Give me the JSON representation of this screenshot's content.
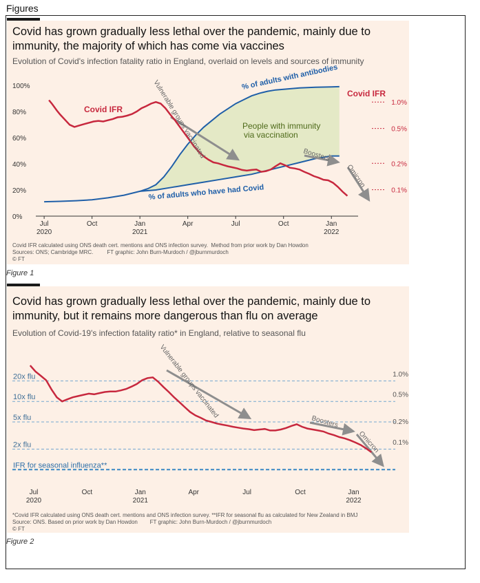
{
  "document": {
    "heading": "Figures"
  },
  "colors": {
    "panel_bg": "#fdf0e6",
    "ifr_line": "#c7283e",
    "antibody_line": "#1f5fa8",
    "fill_area": "#e4e9c6",
    "arrow": "#8e8e8e",
    "flu_line": "#3a88c4",
    "dashed": "#73a7d0"
  },
  "figure1": {
    "caption": "Figure 1",
    "title_line1": "Covid has grown gradually less lethal over the pandemic, mainly due to",
    "title_line2": "immunity, the majority of which has come via vaccines",
    "subtitle": "Evolution of Covid's infection fatality ratio in England, overlaid on levels and sources of immunity",
    "note_line1": "Covid IFR calculated using ONS death cert. mentions and ONS infection survey.  Method from prior work by Dan Howdon",
    "note_line2": "Sources: ONS; Cambridge MRC.         FT graphic: John Burn-Murdoch / @jburnmurdoch",
    "note_line3": "© FT"
  },
  "figure2": {
    "caption": "Figure 2",
    "title_line1": "Covid has grown gradually less lethal over the pandemic, mainly due to",
    "title_line2": "immunity, but it remains more dangerous than flu on average",
    "subtitle": "Evolution of Covid-19's infection fatality ratio* in England, relative to seasonal flu",
    "note_line1": "*Covid IFR calculated using ONS death cert. mentions and ONS infection survey. **IFR for seasonal flu as calculated for New Zealand in BMJ",
    "note_line2": "Source: ONS. Based on prior work by Dan Howdon        FT graphic: John Burn-Murdoch / @jburnmurdoch",
    "note_line3": "© FT"
  },
  "chart_data": [
    {
      "type": "line",
      "title": "Covid has grown gradually less lethal over the pandemic, mainly due to immunity, the majority of which has come via vaccines",
      "x_ticks": [
        {
          "t": 0,
          "label": "Jul",
          "year": "2020"
        },
        {
          "t": 3,
          "label": "Oct",
          "year": ""
        },
        {
          "t": 6,
          "label": "Jan",
          "year": "2021"
        },
        {
          "t": 9,
          "label": "Apr",
          "year": ""
        },
        {
          "t": 12,
          "label": "Jul",
          "year": ""
        },
        {
          "t": 15,
          "label": "Oct",
          "year": ""
        },
        {
          "t": 18,
          "label": "Jan",
          "year": "2022"
        }
      ],
      "xlim": [
        -0.35,
        19.5
      ],
      "ylim_left": [
        0,
        100
      ],
      "left_ticks": [
        {
          "v": 0,
          "label": "0%"
        },
        {
          "v": 20,
          "label": "20%"
        },
        {
          "v": 40,
          "label": "40%"
        },
        {
          "v": 60,
          "label": "60%"
        },
        {
          "v": 80,
          "label": "80%"
        },
        {
          "v": 100,
          "label": "100%"
        }
      ],
      "right_axis_title": "Covid IFR",
      "right_scale": "log",
      "ylim_right_ifr_pct": [
        0.05,
        1.55
      ],
      "right_ticks": [
        {
          "v": 1.0,
          "label": "1.0%"
        },
        {
          "v": 0.5,
          "label": "0.5%"
        },
        {
          "v": 0.2,
          "label": "0.2%"
        },
        {
          "v": 0.1,
          "label": "0.1%"
        }
      ],
      "series": [
        {
          "name": "Covid IFR",
          "axis": "right",
          "x": [
            0.3,
            0.5,
            0.8,
            1.0,
            1.3,
            1.6,
            1.9,
            2.2,
            2.5,
            2.8,
            3.1,
            3.4,
            3.7,
            4.0,
            4.3,
            4.6,
            4.9,
            5.2,
            5.5,
            5.8,
            6.1,
            6.4,
            6.7,
            7.0,
            7.3,
            7.6,
            7.9,
            8.2,
            8.5,
            8.8,
            9.1,
            9.4,
            9.7,
            10.0,
            10.3,
            10.6,
            10.9,
            11.2,
            11.5,
            11.8,
            12.1,
            12.4,
            12.7,
            13.0,
            13.3,
            13.6,
            13.9,
            14.2,
            14.5,
            14.8,
            15.1,
            15.4,
            15.7,
            16.0,
            16.3,
            16.6,
            16.9,
            17.2,
            17.5,
            17.8,
            18.1,
            18.4,
            18.7,
            19.0
          ],
          "values": [
            1.05,
            0.95,
            0.8,
            0.72,
            0.63,
            0.55,
            0.52,
            0.54,
            0.56,
            0.58,
            0.6,
            0.61,
            0.6,
            0.62,
            0.64,
            0.67,
            0.68,
            0.7,
            0.73,
            0.78,
            0.85,
            0.9,
            0.96,
            1.0,
            0.96,
            0.85,
            0.72,
            0.62,
            0.52,
            0.44,
            0.37,
            0.31,
            0.27,
            0.24,
            0.22,
            0.205,
            0.2,
            0.192,
            0.185,
            0.18,
            0.175,
            0.168,
            0.165,
            0.168,
            0.17,
            0.16,
            0.163,
            0.17,
            0.185,
            0.2,
            0.19,
            0.178,
            0.175,
            0.17,
            0.16,
            0.152,
            0.143,
            0.137,
            0.13,
            0.128,
            0.12,
            0.108,
            0.095,
            0.085
          ]
        },
        {
          "name": "% of adults with antibodies",
          "axis": "left",
          "x": [
            0,
            1,
            2,
            3,
            4,
            5,
            6,
            6.5,
            7,
            7.5,
            8,
            8.5,
            9,
            9.5,
            10,
            10.5,
            11,
            11.5,
            12,
            12.5,
            13,
            13.5,
            14,
            14.5,
            15,
            15.5,
            16,
            16.5,
            17,
            17.5,
            18,
            18.5
          ],
          "values": [
            11,
            11.3,
            11.8,
            12.5,
            14,
            16,
            19,
            21,
            24,
            30,
            38,
            47,
            55,
            62,
            68,
            73,
            78,
            82,
            86,
            89,
            92,
            94,
            95.5,
            96.5,
            97,
            97.5,
            98,
            98.3,
            98.5,
            98.7,
            98.8,
            99
          ]
        },
        {
          "name": "% of adults who have had Covid",
          "axis": "left",
          "x": [
            6,
            7,
            8,
            9,
            10,
            11,
            12,
            13,
            14,
            15,
            16,
            17,
            18,
            18.5
          ],
          "values": [
            19,
            20,
            22,
            24,
            26,
            28,
            30,
            32,
            35,
            38,
            41,
            44,
            46,
            46
          ]
        }
      ],
      "annotations": [
        {
          "text": "% of adults with antibodies",
          "color": "blue"
        },
        {
          "text": "% of adults who have had Covid",
          "color": "blue"
        },
        {
          "text": "Covid IFR",
          "color": "red"
        },
        {
          "text": "People with immunity",
          "color": "green"
        },
        {
          "text": "via vaccination",
          "color": "green"
        },
        {
          "text": "Vulnerable groups vaccinated",
          "color": "grey"
        },
        {
          "text": "Boosters",
          "color": "grey"
        },
        {
          "text": "Omicron",
          "color": "grey"
        }
      ]
    },
    {
      "type": "line",
      "title": "Covid has grown gradually less lethal over the pandemic, mainly due to immunity, but it remains more dangerous than flu on average",
      "x_ticks": [
        {
          "t": 0,
          "label": "Jul",
          "year": "2020"
        },
        {
          "t": 3,
          "label": "Oct",
          "year": ""
        },
        {
          "t": 6,
          "label": "Jan",
          "year": "2021"
        },
        {
          "t": 9,
          "label": "Apr",
          "year": ""
        },
        {
          "t": 12,
          "label": "Jul",
          "year": ""
        },
        {
          "t": 15,
          "label": "Oct",
          "year": ""
        },
        {
          "t": 18,
          "label": "Jan",
          "year": "2022"
        }
      ],
      "xlim": [
        -1.2,
        20.5
      ],
      "right_scale": "log",
      "ylim_right_ifr_pct": [
        0.022,
        2.0
      ],
      "right_ticks": [
        {
          "v": 1.0,
          "label": "1.0%"
        },
        {
          "v": 0.5,
          "label": "0.5%"
        },
        {
          "v": 0.2,
          "label": "0.2%"
        },
        {
          "v": 0.1,
          "label": "0.1%"
        }
      ],
      "reference_lines": [
        {
          "label": "20x flu",
          "ifr_pct": 0.8
        },
        {
          "label": "10x flu",
          "ifr_pct": 0.4
        },
        {
          "label": "5x flu",
          "ifr_pct": 0.2
        },
        {
          "label": "2x flu",
          "ifr_pct": 0.08
        },
        {
          "label": "IFR for seasonal influenza**",
          "ifr_pct": 0.04
        }
      ],
      "series": [
        {
          "name": "Covid IFR",
          "x": [
            -0.2,
            0.1,
            0.4,
            0.7,
            1.0,
            1.3,
            1.6,
            1.9,
            2.2,
            2.5,
            2.8,
            3.1,
            3.4,
            3.7,
            4.0,
            4.3,
            4.6,
            4.9,
            5.2,
            5.5,
            5.8,
            6.1,
            6.4,
            6.7,
            7.0,
            7.3,
            7.6,
            7.9,
            8.2,
            8.5,
            8.8,
            9.1,
            9.4,
            9.7,
            10.0,
            10.3,
            10.6,
            10.9,
            11.2,
            11.5,
            11.8,
            12.1,
            12.4,
            12.7,
            13.0,
            13.3,
            13.6,
            13.9,
            14.2,
            14.5,
            14.8,
            15.1,
            15.4,
            15.7,
            16.0,
            16.3,
            16.6,
            16.9,
            17.2,
            17.5,
            17.8,
            18.1,
            18.4,
            18.7,
            19.0
          ],
          "values": [
            1.35,
            1.1,
            0.95,
            0.82,
            0.6,
            0.46,
            0.4,
            0.43,
            0.46,
            0.48,
            0.5,
            0.52,
            0.51,
            0.53,
            0.55,
            0.56,
            0.56,
            0.58,
            0.61,
            0.66,
            0.72,
            0.82,
            0.88,
            0.9,
            0.78,
            0.65,
            0.55,
            0.46,
            0.39,
            0.33,
            0.28,
            0.25,
            0.23,
            0.21,
            0.2,
            0.19,
            0.183,
            0.177,
            0.17,
            0.165,
            0.16,
            0.157,
            0.152,
            0.155,
            0.158,
            0.15,
            0.15,
            0.155,
            0.163,
            0.175,
            0.185,
            0.17,
            0.16,
            0.155,
            0.15,
            0.145,
            0.135,
            0.128,
            0.12,
            0.115,
            0.108,
            0.1,
            0.092,
            0.082,
            0.072
          ]
        }
      ],
      "annotations": [
        {
          "text": "Vulnerable groups vaccinated",
          "color": "grey"
        },
        {
          "text": "Boosters",
          "color": "grey"
        },
        {
          "text": "Omicron",
          "color": "grey"
        }
      ]
    }
  ]
}
